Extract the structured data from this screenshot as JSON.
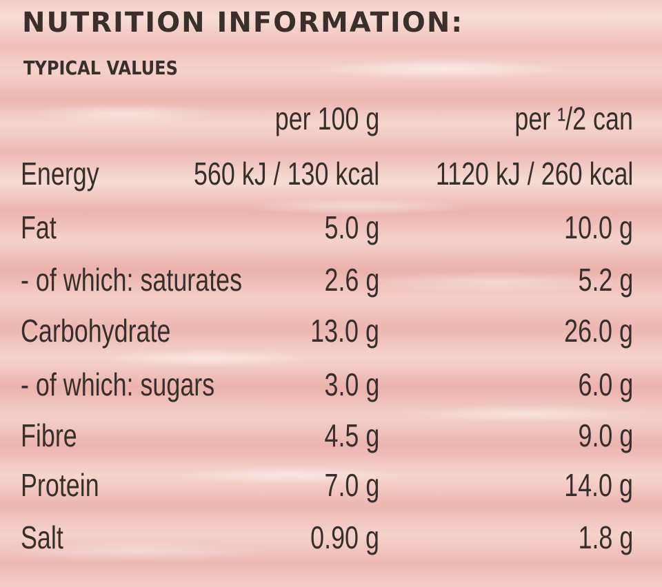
{
  "title": "NUTRITION INFORMATION:",
  "subtitle": "TYPICAL VALUES",
  "columns": {
    "per_100g": "per 100 g",
    "per_half_can": "per ¹/2 can"
  },
  "rows": [
    {
      "label": "Energy",
      "per_100g": "560 kJ / 130 kcal",
      "per_half_can": "1120 kJ / 260 kcal"
    },
    {
      "label": "Fat",
      "per_100g": "5.0 g",
      "per_half_can": "10.0 g"
    },
    {
      "label": "- of which: saturates",
      "per_100g": "2.6 g",
      "per_half_can": "5.2 g"
    },
    {
      "label": "Carbohydrate",
      "per_100g": "13.0 g",
      "per_half_can": "26.0 g"
    },
    {
      "label": "- of which: sugars",
      "per_100g": "3.0 g",
      "per_half_can": "6.0 g"
    },
    {
      "label": "Fibre",
      "per_100g": "4.5 g",
      "per_half_can": "9.0 g"
    },
    {
      "label": "Protein",
      "per_100g": "7.0 g",
      "per_half_can": "14.0 g"
    },
    {
      "label": "Salt",
      "per_100g": "0.90 g",
      "per_half_can": "1.8 g"
    }
  ],
  "colors": {
    "background": "#f3cfca",
    "text": "#3a2e2c"
  }
}
